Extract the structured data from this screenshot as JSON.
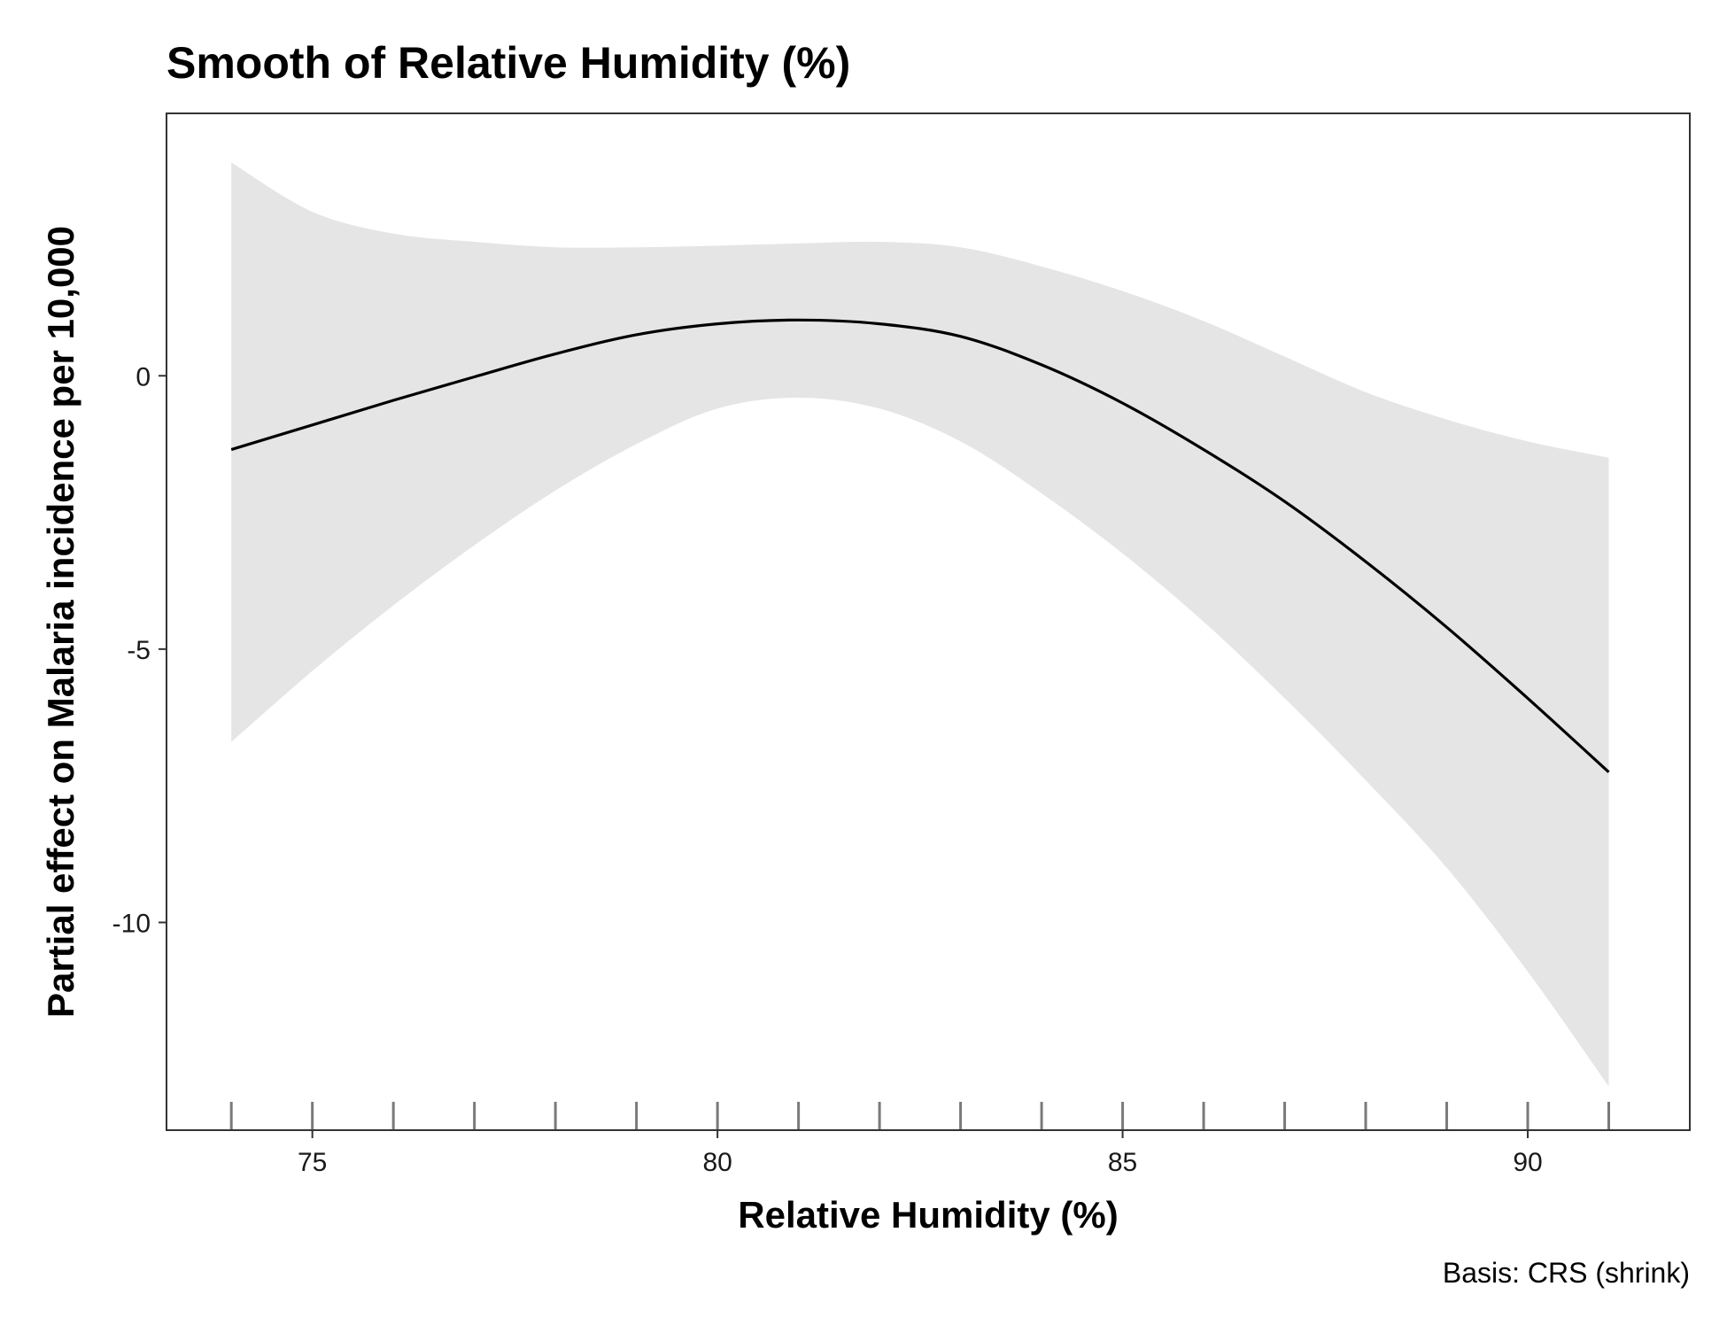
{
  "chart_data": {
    "type": "line",
    "title": "Smooth of Relative Humidity (%)",
    "xlabel": "Relative Humidity (%)",
    "ylabel": "Partial effect on Malaria incidence per 10,000",
    "caption": "Basis: CRS (shrink)",
    "xlim": [
      73.2,
      92.0
    ],
    "ylim": [
      -13.8,
      4.8
    ],
    "x_ticks": [
      75,
      80,
      85,
      90
    ],
    "x_tick_labels": [
      "75",
      "80",
      "85",
      "90"
    ],
    "y_ticks": [
      0,
      -5,
      -10
    ],
    "y_tick_labels": [
      "0",
      "-5",
      "-10"
    ],
    "grid": false,
    "rug_x": [
      74,
      75,
      76,
      77,
      78,
      79,
      80,
      81,
      82,
      83,
      84,
      85,
      86,
      87,
      88,
      89,
      90,
      91
    ],
    "x": [
      74,
      75,
      76,
      77,
      78,
      79,
      80,
      81,
      82,
      83,
      84,
      85,
      86,
      87,
      88,
      89,
      90,
      91
    ],
    "fit": [
      -1.35,
      -0.9,
      -0.45,
      -0.02,
      0.4,
      0.75,
      0.95,
      1.02,
      0.95,
      0.72,
      0.2,
      -0.5,
      -1.35,
      -2.3,
      -3.4,
      -4.6,
      -5.9,
      -7.25
    ],
    "upper": [
      3.9,
      3.0,
      2.6,
      2.45,
      2.35,
      2.35,
      2.38,
      2.42,
      2.45,
      2.35,
      2.0,
      1.55,
      1.0,
      0.35,
      -0.3,
      -0.8,
      -1.2,
      -1.5
    ],
    "lower": [
      -6.7,
      -5.4,
      -4.2,
      -3.1,
      -2.1,
      -1.25,
      -0.6,
      -0.4,
      -0.6,
      -1.2,
      -2.15,
      -3.25,
      -4.5,
      -5.9,
      -7.4,
      -9.0,
      -10.9,
      -13.0
    ],
    "colors": {
      "line": "#000000",
      "band": "#e5e5e5",
      "rug": "#7a7a7a",
      "frame": "#333333"
    }
  }
}
